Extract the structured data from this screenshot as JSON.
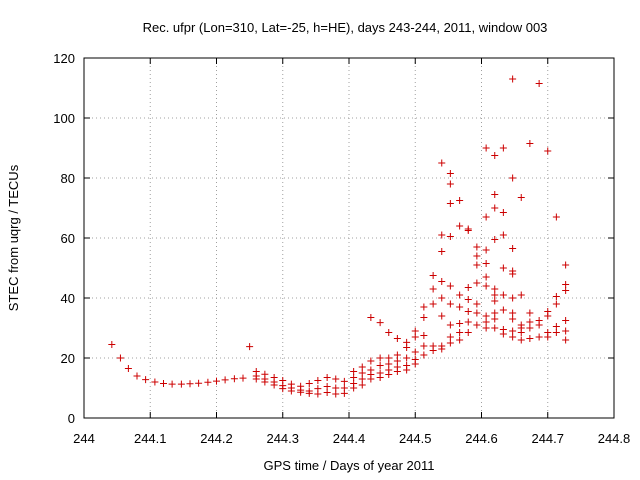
{
  "chart_data": {
    "type": "scatter",
    "title": "Rec. ufpr (Lon=310, Lat=-25, h=HE), days 243-244, 2011, window 003",
    "xlabel": "GPS time / Days of year 2011",
    "ylabel": "STEC from uqrg / TECUs",
    "xlim": [
      244,
      244.8
    ],
    "ylim": [
      0,
      120
    ],
    "xticks": [
      244,
      244.1,
      244.2,
      244.3,
      244.4,
      244.5,
      244.6,
      244.7,
      244.8
    ],
    "xtick_labels": [
      "244",
      "244.1",
      "244.2",
      "244.3",
      "244.4",
      "244.5",
      "244.6",
      "244.7",
      "244.8"
    ],
    "yticks": [
      0,
      20,
      40,
      60,
      80,
      100,
      120
    ],
    "ytick_labels": [
      "0",
      "20",
      "40",
      "60",
      "80",
      "100",
      "120"
    ],
    "grid": true,
    "marker": "plus",
    "color": "#cc0000",
    "points": [
      [
        244.042,
        24.5
      ],
      [
        244.055,
        20
      ],
      [
        244.067,
        16.5
      ],
      [
        244.08,
        14
      ],
      [
        244.093,
        12.8
      ],
      [
        244.107,
        12
      ],
      [
        244.12,
        11.5
      ],
      [
        244.133,
        11.3
      ],
      [
        244.147,
        11.3
      ],
      [
        244.16,
        11.4
      ],
      [
        244.173,
        11.6
      ],
      [
        244.187,
        11.9
      ],
      [
        244.2,
        12.3
      ],
      [
        244.213,
        12.7
      ],
      [
        244.227,
        13.1
      ],
      [
        244.24,
        13.3
      ],
      [
        244.25,
        23.8
      ],
      [
        244.26,
        15.5
      ],
      [
        244.26,
        14
      ],
      [
        244.26,
        13
      ],
      [
        244.273,
        14.6
      ],
      [
        244.273,
        13
      ],
      [
        244.273,
        12
      ],
      [
        244.287,
        13.5
      ],
      [
        244.287,
        12
      ],
      [
        244.287,
        11
      ],
      [
        244.3,
        12.5
      ],
      [
        244.3,
        10.8
      ],
      [
        244.3,
        9.8
      ],
      [
        244.313,
        11.3
      ],
      [
        244.313,
        10
      ],
      [
        244.313,
        9
      ],
      [
        244.327,
        10.6
      ],
      [
        244.327,
        9.3
      ],
      [
        244.327,
        8.6
      ],
      [
        244.34,
        11.5
      ],
      [
        244.34,
        9
      ],
      [
        244.34,
        8.2
      ],
      [
        244.353,
        12.5
      ],
      [
        244.353,
        9.8
      ],
      [
        244.353,
        8
      ],
      [
        244.367,
        13.5
      ],
      [
        244.367,
        10.5
      ],
      [
        244.367,
        8.5
      ],
      [
        244.38,
        13
      ],
      [
        244.38,
        10
      ],
      [
        244.38,
        8
      ],
      [
        244.393,
        12.2
      ],
      [
        244.393,
        10
      ],
      [
        244.393,
        8.2
      ],
      [
        244.407,
        15.5
      ],
      [
        244.407,
        13.5
      ],
      [
        244.407,
        11.5
      ],
      [
        244.407,
        10
      ],
      [
        244.42,
        17
      ],
      [
        244.42,
        15
      ],
      [
        244.42,
        13
      ],
      [
        244.42,
        11
      ],
      [
        244.433,
        33.5
      ],
      [
        244.433,
        19
      ],
      [
        244.433,
        16
      ],
      [
        244.433,
        14.5
      ],
      [
        244.433,
        13
      ],
      [
        244.447,
        31.8
      ],
      [
        244.447,
        20
      ],
      [
        244.447,
        17.5
      ],
      [
        244.447,
        15
      ],
      [
        244.447,
        13.5
      ],
      [
        244.46,
        28.5
      ],
      [
        244.46,
        20
      ],
      [
        244.46,
        18
      ],
      [
        244.46,
        16
      ],
      [
        244.46,
        14.5
      ],
      [
        244.473,
        26.5
      ],
      [
        244.473,
        21
      ],
      [
        244.473,
        19
      ],
      [
        244.473,
        17
      ],
      [
        244.473,
        15.5
      ],
      [
        244.487,
        25.2
      ],
      [
        244.487,
        23.5
      ],
      [
        244.487,
        20
      ],
      [
        244.487,
        17.5
      ],
      [
        244.487,
        16
      ],
      [
        244.5,
        29
      ],
      [
        244.5,
        27
      ],
      [
        244.5,
        22
      ],
      [
        244.5,
        19.5
      ],
      [
        244.5,
        18
      ],
      [
        244.513,
        37
      ],
      [
        244.513,
        33.5
      ],
      [
        244.513,
        27.5
      ],
      [
        244.513,
        24
      ],
      [
        244.513,
        21
      ],
      [
        244.527,
        47.5
      ],
      [
        244.527,
        43
      ],
      [
        244.527,
        38
      ],
      [
        244.527,
        24
      ],
      [
        244.527,
        22.5
      ],
      [
        244.54,
        85
      ],
      [
        244.54,
        61
      ],
      [
        244.54,
        55.5
      ],
      [
        244.54,
        45.5
      ],
      [
        244.54,
        40
      ],
      [
        244.54,
        34
      ],
      [
        244.54,
        24
      ],
      [
        244.54,
        23
      ],
      [
        244.553,
        81.5
      ],
      [
        244.553,
        78
      ],
      [
        244.553,
        71.5
      ],
      [
        244.553,
        60.5
      ],
      [
        244.553,
        44
      ],
      [
        244.553,
        38
      ],
      [
        244.553,
        31
      ],
      [
        244.553,
        27
      ],
      [
        244.553,
        25
      ],
      [
        244.567,
        72.5
      ],
      [
        244.567,
        64
      ],
      [
        244.567,
        41
      ],
      [
        244.567,
        37
      ],
      [
        244.567,
        31.5
      ],
      [
        244.567,
        28.5
      ],
      [
        244.567,
        26
      ],
      [
        244.58,
        63
      ],
      [
        244.58,
        62.5
      ],
      [
        244.58,
        43.5
      ],
      [
        244.58,
        39.5
      ],
      [
        244.58,
        35.5
      ],
      [
        244.58,
        32
      ],
      [
        244.58,
        28.5
      ],
      [
        244.593,
        57
      ],
      [
        244.593,
        54
      ],
      [
        244.593,
        51
      ],
      [
        244.593,
        45
      ],
      [
        244.593,
        38
      ],
      [
        244.593,
        35
      ],
      [
        244.593,
        31
      ],
      [
        244.607,
        90
      ],
      [
        244.607,
        67
      ],
      [
        244.607,
        56
      ],
      [
        244.607,
        51.5
      ],
      [
        244.607,
        47
      ],
      [
        244.607,
        44
      ],
      [
        244.607,
        34
      ],
      [
        244.607,
        32
      ],
      [
        244.607,
        30
      ],
      [
        244.62,
        87.5
      ],
      [
        244.62,
        74.5
      ],
      [
        244.62,
        70
      ],
      [
        244.62,
        59.5
      ],
      [
        244.62,
        43
      ],
      [
        244.62,
        41
      ],
      [
        244.62,
        39
      ],
      [
        244.62,
        35
      ],
      [
        244.62,
        33
      ],
      [
        244.62,
        30
      ],
      [
        244.633,
        90
      ],
      [
        244.633,
        68.5
      ],
      [
        244.633,
        61
      ],
      [
        244.633,
        50
      ],
      [
        244.633,
        41
      ],
      [
        244.633,
        36
      ],
      [
        244.633,
        29.5
      ],
      [
        244.633,
        28
      ],
      [
        244.647,
        113
      ],
      [
        244.647,
        80
      ],
      [
        244.647,
        56.5
      ],
      [
        244.647,
        49
      ],
      [
        244.647,
        48
      ],
      [
        244.647,
        40
      ],
      [
        244.647,
        35
      ],
      [
        244.647,
        33
      ],
      [
        244.647,
        29
      ],
      [
        244.647,
        27
      ],
      [
        244.66,
        73.5
      ],
      [
        244.66,
        41
      ],
      [
        244.66,
        31
      ],
      [
        244.66,
        30
      ],
      [
        244.66,
        28.5
      ],
      [
        244.66,
        26
      ],
      [
        244.673,
        91.5
      ],
      [
        244.673,
        35
      ],
      [
        244.673,
        32
      ],
      [
        244.673,
        30
      ],
      [
        244.673,
        26.5
      ],
      [
        244.687,
        111.5
      ],
      [
        244.687,
        32.5
      ],
      [
        244.687,
        31
      ],
      [
        244.687,
        27
      ],
      [
        244.7,
        89
      ],
      [
        244.7,
        35.5
      ],
      [
        244.7,
        34
      ],
      [
        244.7,
        28.5
      ],
      [
        244.7,
        27
      ],
      [
        244.713,
        67
      ],
      [
        244.713,
        40.5
      ],
      [
        244.713,
        38
      ],
      [
        244.713,
        30.5
      ],
      [
        244.713,
        28.5
      ],
      [
        244.727,
        51
      ],
      [
        244.727,
        44.5
      ],
      [
        244.727,
        42.5
      ],
      [
        244.727,
        32.5
      ],
      [
        244.727,
        29
      ],
      [
        244.727,
        26
      ]
    ]
  }
}
